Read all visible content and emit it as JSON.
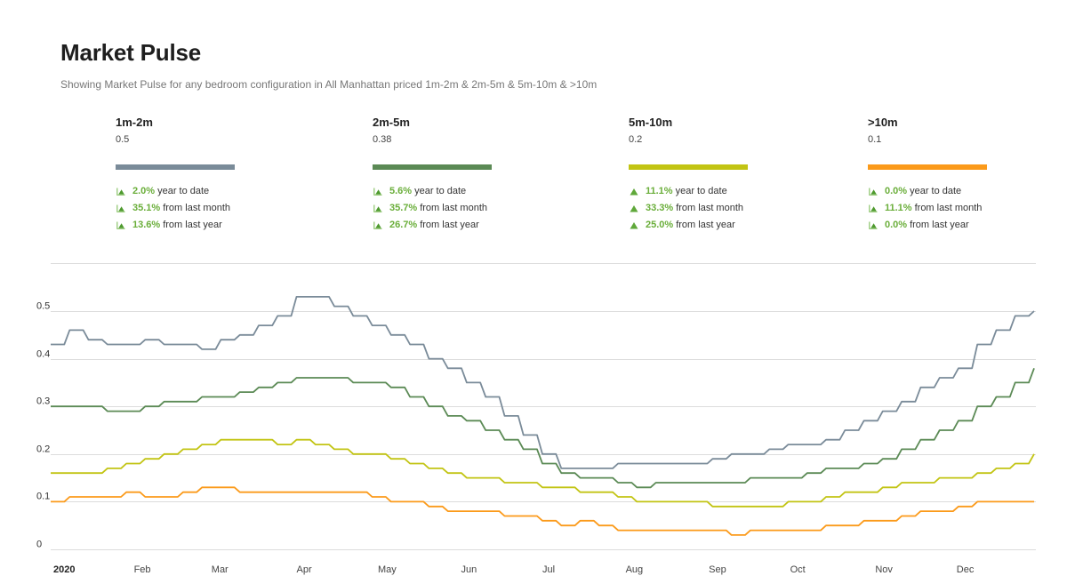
{
  "header": {
    "title": "Market Pulse",
    "subtitle": "Showing Market Pulse for any bedroom configuration in All Manhattan priced 1m-2m & 2m-5m & 5m-10m & >10m"
  },
  "legend": [
    {
      "name": "1m-2m",
      "value": "0.5",
      "color": "#7a8b99",
      "icon": "area-chart-up-icon",
      "stats": [
        {
          "pct": "2.0%",
          "label": "year to date"
        },
        {
          "pct": "35.1%",
          "label": "from last month"
        },
        {
          "pct": "13.6%",
          "label": "from last year"
        }
      ]
    },
    {
      "name": "2m-5m",
      "value": "0.38",
      "color": "#5b8a55",
      "icon": "area-chart-up-icon",
      "stats": [
        {
          "pct": "5.6%",
          "label": "year to date"
        },
        {
          "pct": "35.7%",
          "label": "from last month"
        },
        {
          "pct": "26.7%",
          "label": "from last year"
        }
      ]
    },
    {
      "name": "5m-10m",
      "value": "0.2",
      "color": "#c2c413",
      "icon": "triangle-up-icon",
      "stats": [
        {
          "pct": "11.1%",
          "label": "year to date"
        },
        {
          "pct": "33.3%",
          "label": "from last month"
        },
        {
          "pct": "25.0%",
          "label": "from last year"
        }
      ]
    },
    {
      "name": ">10m",
      "value": "0.1",
      "color": "#fb9a1a",
      "icon": "area-chart-up-icon",
      "stats": [
        {
          "pct": "0.0%",
          "label": "year to date"
        },
        {
          "pct": "11.1%",
          "label": "from last month"
        },
        {
          "pct": "0.0%",
          "label": "from last year"
        }
      ]
    }
  ],
  "chart_data": {
    "type": "line",
    "title": "Market Pulse",
    "xlabel": "",
    "ylabel": "",
    "x_unit": "week of 2020",
    "x": [
      1,
      2,
      3,
      4,
      5,
      6,
      7,
      8,
      9,
      10,
      11,
      12,
      13,
      14,
      15,
      16,
      17,
      18,
      19,
      20,
      21,
      22,
      23,
      24,
      25,
      26,
      27,
      28,
      29,
      30,
      31,
      32,
      33,
      34,
      35,
      36,
      37,
      38,
      39,
      40,
      41,
      42,
      43,
      44,
      45,
      46,
      47,
      48,
      49,
      50,
      51,
      52,
      53
    ],
    "xlim": [
      1,
      53
    ],
    "x_ticks": [
      {
        "label": "2020",
        "week": 1,
        "bold": true
      },
      {
        "label": "Feb",
        "week": 5.4
      },
      {
        "label": "Mar",
        "week": 9.5
      },
      {
        "label": "Apr",
        "week": 14.0
      },
      {
        "label": "May",
        "week": 18.3
      },
      {
        "label": "Jun",
        "week": 22.7
      },
      {
        "label": "Jul",
        "week": 27.0
      },
      {
        "label": "Aug",
        "week": 31.4
      },
      {
        "label": "Sep",
        "week": 35.8
      },
      {
        "label": "Oct",
        "week": 40.1
      },
      {
        "label": "Nov",
        "week": 44.6
      },
      {
        "label": "Dec",
        "week": 48.9
      }
    ],
    "ylim": [
      0,
      0.6
    ],
    "y_ticks": [
      "0",
      "0.1",
      "0.2",
      "0.3",
      "0.4",
      "0.5"
    ],
    "y_tick_values": [
      0,
      0.1,
      0.2,
      0.3,
      0.4,
      0.5
    ],
    "grid": true,
    "legend_position": "top",
    "series": [
      {
        "name": "1m-2m",
        "color": "#7a8b99",
        "values": [
          0.43,
          0.46,
          0.44,
          0.43,
          0.43,
          0.44,
          0.43,
          0.43,
          0.42,
          0.44,
          0.45,
          0.47,
          0.49,
          0.53,
          0.53,
          0.51,
          0.49,
          0.47,
          0.45,
          0.43,
          0.4,
          0.38,
          0.35,
          0.32,
          0.28,
          0.24,
          0.2,
          0.17,
          0.17,
          0.17,
          0.18,
          0.18,
          0.18,
          0.18,
          0.18,
          0.19,
          0.2,
          0.2,
          0.21,
          0.22,
          0.22,
          0.23,
          0.25,
          0.27,
          0.29,
          0.31,
          0.34,
          0.36,
          0.38,
          0.43,
          0.46,
          0.49,
          0.5
        ]
      },
      {
        "name": "2m-5m",
        "color": "#5b8a55",
        "values": [
          0.3,
          0.3,
          0.3,
          0.29,
          0.29,
          0.3,
          0.31,
          0.31,
          0.32,
          0.32,
          0.33,
          0.34,
          0.35,
          0.36,
          0.36,
          0.36,
          0.35,
          0.35,
          0.34,
          0.32,
          0.3,
          0.28,
          0.27,
          0.25,
          0.23,
          0.21,
          0.18,
          0.16,
          0.15,
          0.15,
          0.14,
          0.13,
          0.14,
          0.14,
          0.14,
          0.14,
          0.14,
          0.15,
          0.15,
          0.15,
          0.16,
          0.17,
          0.17,
          0.18,
          0.19,
          0.21,
          0.23,
          0.25,
          0.27,
          0.3,
          0.32,
          0.35,
          0.38
        ]
      },
      {
        "name": "5m-10m",
        "color": "#c2c413",
        "values": [
          0.16,
          0.16,
          0.16,
          0.17,
          0.18,
          0.19,
          0.2,
          0.21,
          0.22,
          0.23,
          0.23,
          0.23,
          0.22,
          0.23,
          0.22,
          0.21,
          0.2,
          0.2,
          0.19,
          0.18,
          0.17,
          0.16,
          0.15,
          0.15,
          0.14,
          0.14,
          0.13,
          0.13,
          0.12,
          0.12,
          0.11,
          0.1,
          0.1,
          0.1,
          0.1,
          0.09,
          0.09,
          0.09,
          0.09,
          0.1,
          0.1,
          0.11,
          0.12,
          0.12,
          0.13,
          0.14,
          0.14,
          0.15,
          0.15,
          0.16,
          0.17,
          0.18,
          0.2
        ]
      },
      {
        "name": ">10m",
        "color": "#fb9a1a",
        "values": [
          0.1,
          0.11,
          0.11,
          0.11,
          0.12,
          0.11,
          0.11,
          0.12,
          0.13,
          0.13,
          0.12,
          0.12,
          0.12,
          0.12,
          0.12,
          0.12,
          0.12,
          0.11,
          0.1,
          0.1,
          0.09,
          0.08,
          0.08,
          0.08,
          0.07,
          0.07,
          0.06,
          0.05,
          0.06,
          0.05,
          0.04,
          0.04,
          0.04,
          0.04,
          0.04,
          0.04,
          0.03,
          0.04,
          0.04,
          0.04,
          0.04,
          0.05,
          0.05,
          0.06,
          0.06,
          0.07,
          0.08,
          0.08,
          0.09,
          0.1,
          0.1,
          0.1,
          0.1
        ]
      }
    ]
  }
}
